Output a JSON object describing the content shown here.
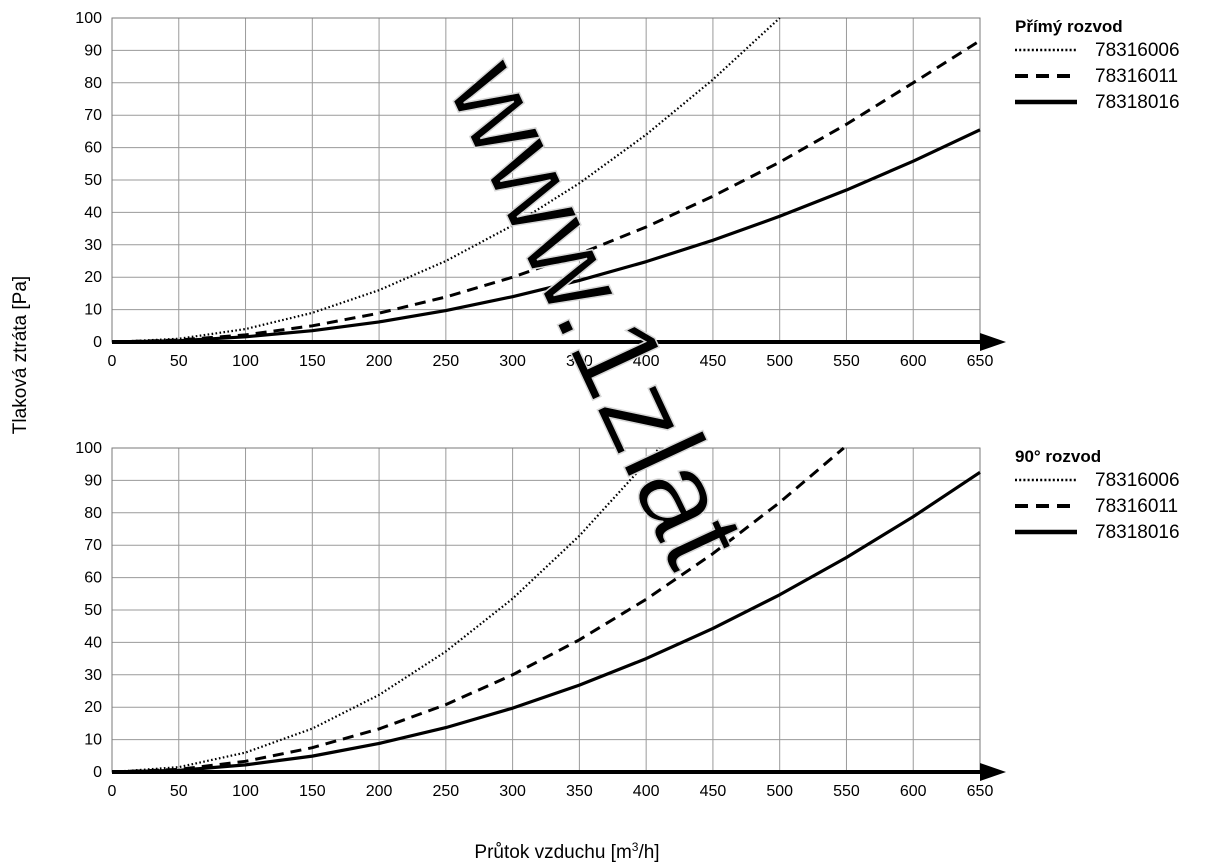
{
  "common": {
    "ylabel": "Tlaková ztráta [Pa]",
    "xlabel_main": "Průtok vzduchu [m",
    "xlabel_sup": "3",
    "xlabel_end": "/h]"
  },
  "chart_data": [
    {
      "type": "line",
      "title": "Přímý rozvod",
      "xlim": [
        0,
        650
      ],
      "ylim": [
        0,
        100
      ],
      "x_ticks": [
        0,
        50,
        100,
        150,
        200,
        250,
        300,
        350,
        400,
        450,
        500,
        550,
        600,
        650
      ],
      "y_ticks": [
        0,
        10,
        20,
        30,
        40,
        50,
        60,
        70,
        80,
        90,
        100
      ],
      "grid": true,
      "legend": "top-right",
      "series": [
        {
          "name": "78316006",
          "style": "dotted",
          "color": "#000000",
          "x": [
            0,
            50,
            100,
            150,
            200,
            250,
            300,
            350,
            400,
            450,
            500
          ],
          "y": [
            0,
            1,
            4,
            9,
            16,
            25,
            36,
            49,
            64,
            81,
            100
          ]
        },
        {
          "name": "78316011",
          "style": "dashed",
          "color": "#000000",
          "x": [
            0,
            50,
            100,
            150,
            200,
            250,
            300,
            350,
            400,
            450,
            500,
            550,
            600,
            650
          ],
          "y": [
            0,
            0.6,
            2.2,
            5,
            8.9,
            13.9,
            20,
            27.2,
            35.5,
            45,
            55.5,
            67.2,
            80,
            93
          ]
        },
        {
          "name": "78318016",
          "style": "solid",
          "color": "#000000",
          "x": [
            0,
            50,
            100,
            150,
            200,
            250,
            300,
            350,
            400,
            450,
            500,
            550,
            600,
            650
          ],
          "y": [
            0,
            0.4,
            1.6,
            3.5,
            6.2,
            9.7,
            14,
            19,
            24.8,
            31.4,
            38.8,
            46.9,
            55.8,
            65.5
          ]
        }
      ]
    },
    {
      "type": "line",
      "title": "90° rozvod",
      "xlim": [
        0,
        650
      ],
      "ylim": [
        0,
        100
      ],
      "x_ticks": [
        0,
        50,
        100,
        150,
        200,
        250,
        300,
        350,
        400,
        450,
        500,
        550,
        600,
        650
      ],
      "y_ticks": [
        0,
        10,
        20,
        30,
        40,
        50,
        60,
        70,
        80,
        90,
        100
      ],
      "grid": true,
      "legend": "top-right",
      "series": [
        {
          "name": "78316006",
          "style": "dotted",
          "color": "#000000",
          "x": [
            0,
            50,
            100,
            150,
            200,
            250,
            300,
            350,
            410
          ],
          "y": [
            0,
            1.5,
            6,
            13.4,
            23.8,
            37.2,
            53.5,
            72.9,
            100
          ]
        },
        {
          "name": "78316011",
          "style": "dashed",
          "color": "#000000",
          "x": [
            0,
            50,
            100,
            150,
            200,
            250,
            300,
            350,
            400,
            450,
            500,
            548
          ],
          "y": [
            0,
            0.8,
            3.3,
            7.5,
            13.3,
            20.8,
            30,
            40.8,
            53.3,
            67.4,
            83.2,
            100
          ]
        },
        {
          "name": "78318016",
          "style": "solid",
          "color": "#000000",
          "x": [
            0,
            50,
            100,
            150,
            200,
            250,
            300,
            350,
            400,
            450,
            500,
            550,
            600,
            650
          ],
          "y": [
            0,
            0.5,
            2.2,
            4.9,
            8.8,
            13.7,
            19.7,
            26.8,
            35,
            44.3,
            54.7,
            66.2,
            78.8,
            92.5
          ]
        }
      ]
    }
  ],
  "watermark": {
    "text": "www.1zlat"
  }
}
